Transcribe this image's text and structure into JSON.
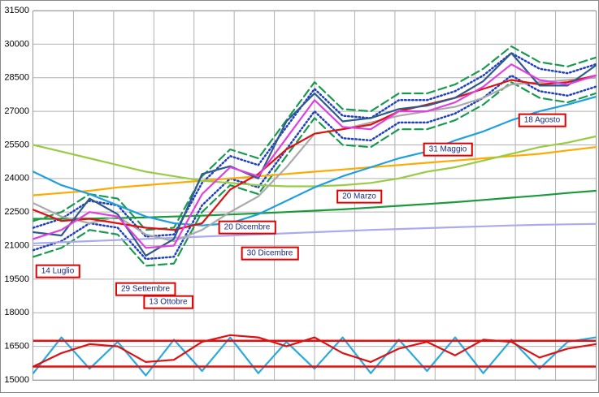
{
  "chart_data": {
    "type": "line",
    "x": [
      0,
      1,
      2,
      3,
      4,
      5,
      6,
      7,
      8,
      9,
      10,
      11,
      12,
      13,
      14,
      15,
      16,
      17,
      18,
      19,
      20
    ],
    "xlim": [
      0,
      20
    ],
    "ylim": [
      15000,
      31500
    ],
    "yticks": [
      15000,
      16500,
      18000,
      19500,
      21000,
      22500,
      24000,
      25500,
      27000,
      28500,
      30000,
      31500
    ],
    "grid": true,
    "series": [
      {
        "color": "#1a9a50",
        "style": "dashed",
        "values": [
          22100,
          22500,
          23300,
          23100,
          21700,
          21800,
          24100,
          25300,
          24900,
          26600,
          28300,
          27100,
          27000,
          27800,
          27800,
          28200,
          28900,
          29900,
          29200,
          29000,
          29400
        ]
      },
      {
        "color": "#1a9a50",
        "style": "dashed",
        "values": [
          20500,
          20900,
          21700,
          21500,
          20100,
          20200,
          22500,
          23700,
          23300,
          25000,
          26700,
          25500,
          25400,
          26200,
          26200,
          26600,
          27300,
          28300,
          27600,
          27400,
          27800
        ]
      },
      {
        "color": "#2040c0",
        "style": "dotted",
        "values": [
          21800,
          22200,
          23000,
          22800,
          21400,
          21500,
          23800,
          25000,
          24600,
          26300,
          28000,
          26800,
          26700,
          27500,
          27500,
          27900,
          28600,
          29600,
          28900,
          28700,
          29100
        ]
      },
      {
        "color": "#2040c0",
        "style": "dotted",
        "values": [
          20800,
          21200,
          22000,
          21800,
          20400,
          20500,
          22800,
          24000,
          23600,
          25300,
          27000,
          25800,
          25700,
          26500,
          26500,
          26900,
          27600,
          28600,
          27900,
          27700,
          28100
        ]
      },
      {
        "color": "#aaaaee",
        "style": "solid",
        "values": [
          21100,
          21150,
          21200,
          21250,
          21300,
          21350,
          21400,
          21450,
          21500,
          21550,
          21600,
          21650,
          21700,
          21740,
          21780,
          21820,
          21860,
          21900,
          21930,
          21950,
          21970
        ]
      },
      {
        "color": "#1a9a3a",
        "style": "solid",
        "values": [
          22200,
          22200,
          22210,
          22230,
          22260,
          22300,
          22340,
          22390,
          22440,
          22500,
          22560,
          22620,
          22700,
          22780,
          22860,
          22940,
          23040,
          23140,
          23240,
          23350,
          23450
        ]
      },
      {
        "color": "#ffaa00",
        "style": "solid",
        "values": [
          23250,
          23350,
          23450,
          23600,
          23700,
          23800,
          23900,
          24000,
          24100,
          24200,
          24300,
          24400,
          24500,
          24600,
          24700,
          24800,
          24900,
          25000,
          25100,
          25250,
          25400
        ]
      },
      {
        "color": "#99cc44",
        "style": "solid",
        "values": [
          25500,
          25200,
          24900,
          24600,
          24300,
          24100,
          23900,
          23800,
          23700,
          23650,
          23650,
          23700,
          23800,
          24000,
          24300,
          24500,
          24800,
          25100,
          25400,
          25600,
          25880
        ]
      },
      {
        "color": "#1ea0e0",
        "style": "solid",
        "values": [
          24300,
          23700,
          23300,
          22800,
          22300,
          22000,
          21900,
          22000,
          22400,
          23000,
          23600,
          24100,
          24500,
          24900,
          25200,
          25700,
          26100,
          26600,
          27000,
          27300,
          27650
        ]
      },
      {
        "color": "#aaaaaa",
        "style": "solid",
        "values": [
          22900,
          22300,
          22000,
          22300,
          21500,
          21200,
          21700,
          22500,
          23200,
          24500,
          26000,
          26200,
          26500,
          26800,
          27000,
          27200,
          27600,
          28200,
          28300,
          28400,
          28500
        ]
      },
      {
        "color": "#dd1111",
        "style": "solid",
        "values": [
          22600,
          22100,
          22200,
          22000,
          21800,
          21700,
          22000,
          23500,
          24200,
          25300,
          26000,
          26200,
          26400,
          27000,
          27300,
          27600,
          28000,
          28400,
          28200,
          28300,
          28600
        ]
      },
      {
        "color": "#2f5a8c",
        "style": "solid",
        "values": [
          21600,
          21450,
          23100,
          22400,
          20550,
          21300,
          24200,
          24550,
          24000,
          26550,
          27800,
          26550,
          26700,
          27100,
          27250,
          27600,
          28350,
          29600,
          28150,
          28150,
          29050
        ]
      },
      {
        "color": "#e040e0",
        "style": "solid",
        "values": [
          21300,
          21700,
          22500,
          22300,
          20900,
          21000,
          23300,
          24500,
          24100,
          25800,
          27500,
          26300,
          26200,
          27000,
          27000,
          27400,
          28100,
          29100,
          28400,
          28200,
          28600
        ]
      },
      {
        "color": "#29a9e0",
        "style": "solid",
        "values": [
          15300,
          16900,
          15500,
          16700,
          15200,
          16800,
          15400,
          16900,
          15300,
          16700,
          15500,
          16900,
          15300,
          16800,
          15400,
          16900,
          15300,
          16800,
          15500,
          16700,
          16900
        ]
      },
      {
        "color": "#dd1111",
        "style": "solid",
        "values": [
          15600,
          16200,
          16600,
          16500,
          15800,
          15900,
          16700,
          17000,
          16900,
          16500,
          16900,
          16200,
          15800,
          16400,
          16700,
          16100,
          16800,
          16700,
          16000,
          16400,
          16600
        ]
      }
    ],
    "hlines": [
      {
        "value": 16750,
        "color": "#dd1111"
      },
      {
        "value": 15600,
        "color": "#dd1111"
      }
    ],
    "annotations": [
      "14  Luglio",
      "29  Settembre",
      "13  Ottobre",
      "20  Dicembre",
      "30  Dicembre",
      "20  Marzo",
      "31  Maggio",
      "18  Agosto"
    ]
  }
}
